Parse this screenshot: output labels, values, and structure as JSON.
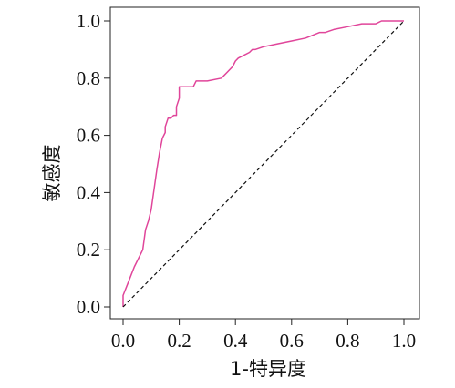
{
  "chart_data": {
    "type": "line",
    "xlabel": "1-特异度",
    "ylabel": "敏感度",
    "xlim": [
      0,
      1
    ],
    "ylim": [
      0,
      1
    ],
    "x_ticks": [
      "0.0",
      "0.2",
      "0.4",
      "0.6",
      "0.8",
      "1.0"
    ],
    "y_ticks": [
      "0.0",
      "0.2",
      "0.4",
      "0.6",
      "0.8",
      "1.0"
    ],
    "grid": false,
    "series": [
      {
        "color": "#e0459a",
        "style": "solid",
        "x": [
          0.0,
          0.0,
          0.02,
          0.04,
          0.07,
          0.08,
          0.09,
          0.1,
          0.11,
          0.12,
          0.13,
          0.14,
          0.15,
          0.15,
          0.16,
          0.17,
          0.18,
          0.19,
          0.19,
          0.2,
          0.2,
          0.25,
          0.26,
          0.3,
          0.35,
          0.37,
          0.39,
          0.4,
          0.41,
          0.43,
          0.45,
          0.46,
          0.47,
          0.5,
          0.55,
          0.6,
          0.65,
          0.7,
          0.72,
          0.75,
          0.8,
          0.85,
          0.9,
          0.92,
          0.95,
          1.0
        ],
        "y": [
          0.0,
          0.04,
          0.09,
          0.14,
          0.2,
          0.27,
          0.3,
          0.34,
          0.41,
          0.48,
          0.54,
          0.59,
          0.61,
          0.63,
          0.66,
          0.66,
          0.67,
          0.67,
          0.7,
          0.73,
          0.77,
          0.77,
          0.79,
          0.79,
          0.8,
          0.82,
          0.84,
          0.86,
          0.87,
          0.88,
          0.89,
          0.9,
          0.9,
          0.91,
          0.92,
          0.93,
          0.94,
          0.96,
          0.96,
          0.97,
          0.98,
          0.99,
          0.99,
          1.0,
          1.0,
          1.0
        ]
      },
      {
        "color": "#111111",
        "style": "dashed",
        "x": [
          0,
          1
        ],
        "y": [
          0,
          1
        ]
      }
    ]
  }
}
